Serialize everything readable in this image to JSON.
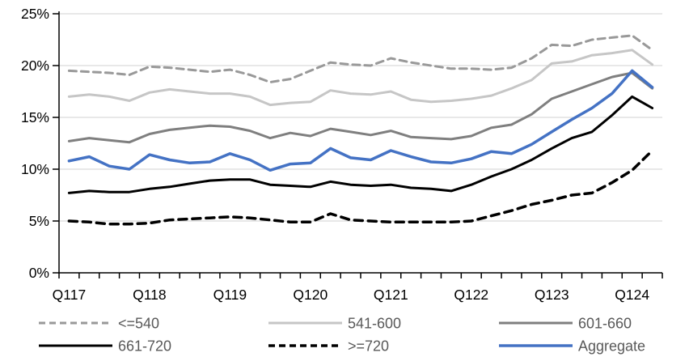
{
  "chart_data": {
    "type": "line",
    "title": "",
    "xlabel": "",
    "ylabel": "",
    "ylim": [
      0,
      25
    ],
    "y_tick_step": 5,
    "y_tick_labels": [
      "0%",
      "5%",
      "10%",
      "15%",
      "20%",
      "25%"
    ],
    "grid": true,
    "gridline_color": "#D9D9D9",
    "axis_color": "#000000",
    "legend_position": "bottom",
    "legend_text_color": "#595959",
    "x_label_every": 4,
    "x_tick_labels": [
      "Q117",
      "Q118",
      "Q119",
      "Q120",
      "Q121",
      "Q122",
      "Q123",
      "Q124"
    ],
    "categories": [
      "Q117",
      "Q217",
      "Q317",
      "Q417",
      "Q118",
      "Q218",
      "Q318",
      "Q418",
      "Q119",
      "Q219",
      "Q319",
      "Q419",
      "Q120",
      "Q220",
      "Q320",
      "Q420",
      "Q121",
      "Q221",
      "Q321",
      "Q421",
      "Q122",
      "Q222",
      "Q322",
      "Q422",
      "Q123",
      "Q223",
      "Q323",
      "Q423",
      "Q124",
      "Q224"
    ],
    "series": [
      {
        "name": "<=540",
        "color": "#999999",
        "dash": "9 6",
        "width": 3,
        "values": [
          19.5,
          19.4,
          19.3,
          19.1,
          19.9,
          19.8,
          19.6,
          19.4,
          19.6,
          19.1,
          18.4,
          18.7,
          19.5,
          20.3,
          20.1,
          20.0,
          20.7,
          20.3,
          20.0,
          19.7,
          19.7,
          19.6,
          19.8,
          20.7,
          22.0,
          21.9,
          22.5,
          22.7,
          22.9,
          21.5
        ]
      },
      {
        "name": "541-600",
        "color": "#C6C6C6",
        "dash": null,
        "width": 3,
        "values": [
          17.0,
          17.2,
          17.0,
          16.6,
          17.4,
          17.7,
          17.5,
          17.3,
          17.3,
          17.0,
          16.2,
          16.4,
          16.5,
          17.6,
          17.3,
          17.2,
          17.5,
          16.7,
          16.5,
          16.6,
          16.8,
          17.1,
          17.8,
          18.6,
          20.2,
          20.4,
          21.0,
          21.2,
          21.5,
          20.1
        ]
      },
      {
        "name": "601-660",
        "color": "#7F7F7F",
        "dash": null,
        "width": 3,
        "values": [
          12.7,
          13.0,
          12.8,
          12.6,
          13.4,
          13.8,
          14.0,
          14.2,
          14.1,
          13.7,
          13.0,
          13.5,
          13.2,
          13.9,
          13.6,
          13.3,
          13.7,
          13.1,
          13.0,
          12.9,
          13.2,
          14.0,
          14.3,
          15.3,
          16.8,
          17.5,
          18.2,
          18.9,
          19.3,
          17.8
        ]
      },
      {
        "name": "661-720",
        "color": "#000000",
        "dash": null,
        "width": 3,
        "values": [
          7.7,
          7.9,
          7.8,
          7.8,
          8.1,
          8.3,
          8.6,
          8.9,
          9.0,
          9.0,
          8.5,
          8.4,
          8.3,
          8.8,
          8.5,
          8.4,
          8.5,
          8.2,
          8.1,
          7.9,
          8.5,
          9.3,
          10.0,
          10.9,
          12.0,
          13.0,
          13.6,
          15.2,
          17.0,
          15.9
        ]
      },
      {
        "name": ">=720",
        "color": "#000000",
        "dash": "10 7",
        "width": 3.5,
        "values": [
          5.0,
          4.9,
          4.7,
          4.7,
          4.8,
          5.1,
          5.2,
          5.3,
          5.4,
          5.3,
          5.1,
          4.9,
          4.9,
          5.7,
          5.1,
          5.0,
          4.9,
          4.9,
          4.9,
          4.9,
          5.0,
          5.5,
          6.0,
          6.6,
          7.0,
          7.5,
          7.7,
          8.7,
          9.9,
          11.8
        ]
      },
      {
        "name": "Aggregate",
        "color": "#4472C4",
        "dash": null,
        "width": 3.5,
        "values": [
          10.8,
          11.2,
          10.3,
          10.0,
          11.4,
          10.9,
          10.6,
          10.7,
          11.5,
          10.9,
          9.9,
          10.5,
          10.6,
          12.0,
          11.1,
          10.9,
          11.8,
          11.2,
          10.7,
          10.6,
          11.0,
          11.7,
          11.5,
          12.4,
          13.6,
          14.8,
          15.9,
          17.3,
          19.5,
          17.9
        ]
      }
    ]
  }
}
